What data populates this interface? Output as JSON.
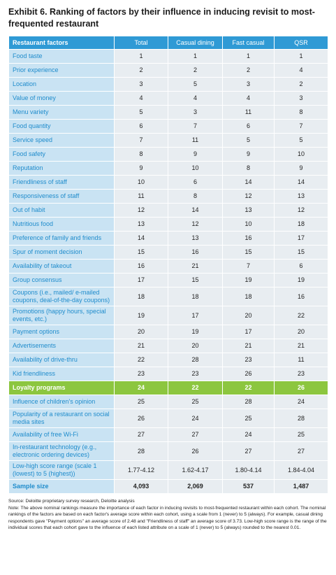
{
  "title": "Exhibit 6. Ranking of factors by their influence in inducing revisit to most-frequented restaurant",
  "table": {
    "header": [
      "Restaurant factors",
      "Total",
      "Casual dining",
      "Fast casual",
      "QSR"
    ],
    "rows": [
      [
        "Food taste",
        1,
        1,
        1,
        1
      ],
      [
        "Prior experience",
        2,
        2,
        2,
        4
      ],
      [
        "Location",
        3,
        5,
        3,
        2
      ],
      [
        "Value of money",
        4,
        4,
        4,
        3
      ],
      [
        "Menu variety",
        5,
        3,
        11,
        8
      ],
      [
        "Food quantity",
        6,
        7,
        6,
        7
      ],
      [
        "Service speed",
        7,
        11,
        5,
        5
      ],
      [
        "Food safety",
        8,
        9,
        9,
        10
      ],
      [
        "Reputation",
        9,
        10,
        8,
        9
      ],
      [
        "Friendliness of staff",
        10,
        6,
        14,
        14
      ],
      [
        "Responsiveness of staff",
        11,
        8,
        12,
        13
      ],
      [
        "Out of habit",
        12,
        14,
        13,
        12
      ],
      [
        "Nutritious food",
        13,
        12,
        10,
        18
      ],
      [
        "Preference of family and friends",
        14,
        13,
        16,
        17
      ],
      [
        "Spur of moment decision",
        15,
        16,
        15,
        15
      ],
      [
        "Availability of takeout",
        16,
        21,
        7,
        6
      ],
      [
        "Group consensus",
        17,
        15,
        19,
        19
      ],
      [
        "Coupons (i.e., mailed/ e-mailed coupons, deal-of-the-day coupons)",
        18,
        18,
        18,
        16
      ],
      [
        "Promotions (happy hours, special events, etc.)",
        19,
        17,
        20,
        22
      ],
      [
        "Payment options",
        20,
        19,
        17,
        20
      ],
      [
        "Advertisements",
        21,
        20,
        21,
        21
      ],
      [
        "Availability of drive-thru",
        22,
        28,
        23,
        11
      ],
      [
        "Kid friendliness",
        23,
        23,
        26,
        23
      ],
      [
        "Loyalty programs",
        24,
        22,
        22,
        26
      ],
      [
        "Influence of children's opinion",
        25,
        25,
        28,
        24
      ],
      [
        "Popularity of a restaurant on social media sites",
        26,
        24,
        25,
        28
      ],
      [
        "Availability of free Wi-Fi",
        27,
        27,
        24,
        25
      ],
      [
        "In-restaurant technology (e.g., electronic ordering devices)",
        28,
        26,
        27,
        27
      ],
      [
        "Low-high score range (scale 1 (lowest) to 5 (highest))",
        "1.77-4.12",
        "1.62-4.17",
        "1.80-4.14",
        "1.84-4.04"
      ],
      [
        "Sample size",
        "4,093",
        "2,069",
        "537",
        "1,487"
      ]
    ]
  },
  "source": "Source: Deloitte proprietary survey research, Deloitte analysis",
  "note": "Note: The above nominal rankings measure the importance of each factor in inducing revisits to most-frequented restaurant within each cohort. The nominal rankings of the factors are based on each factor's average score within each cohort, using a scale from 1 (never) to 5 (always). For example, casual dining respondents gave \"Payment options\" an average score of 2.48 and \"Friendliness of staff\" an average score of 3.73. Low-high score range is the range of the individual scores that each cohort gave to the influence of each listed attribute on a scale of 1 (never) to 5 (always) rounded to the nearest 0.01."
}
